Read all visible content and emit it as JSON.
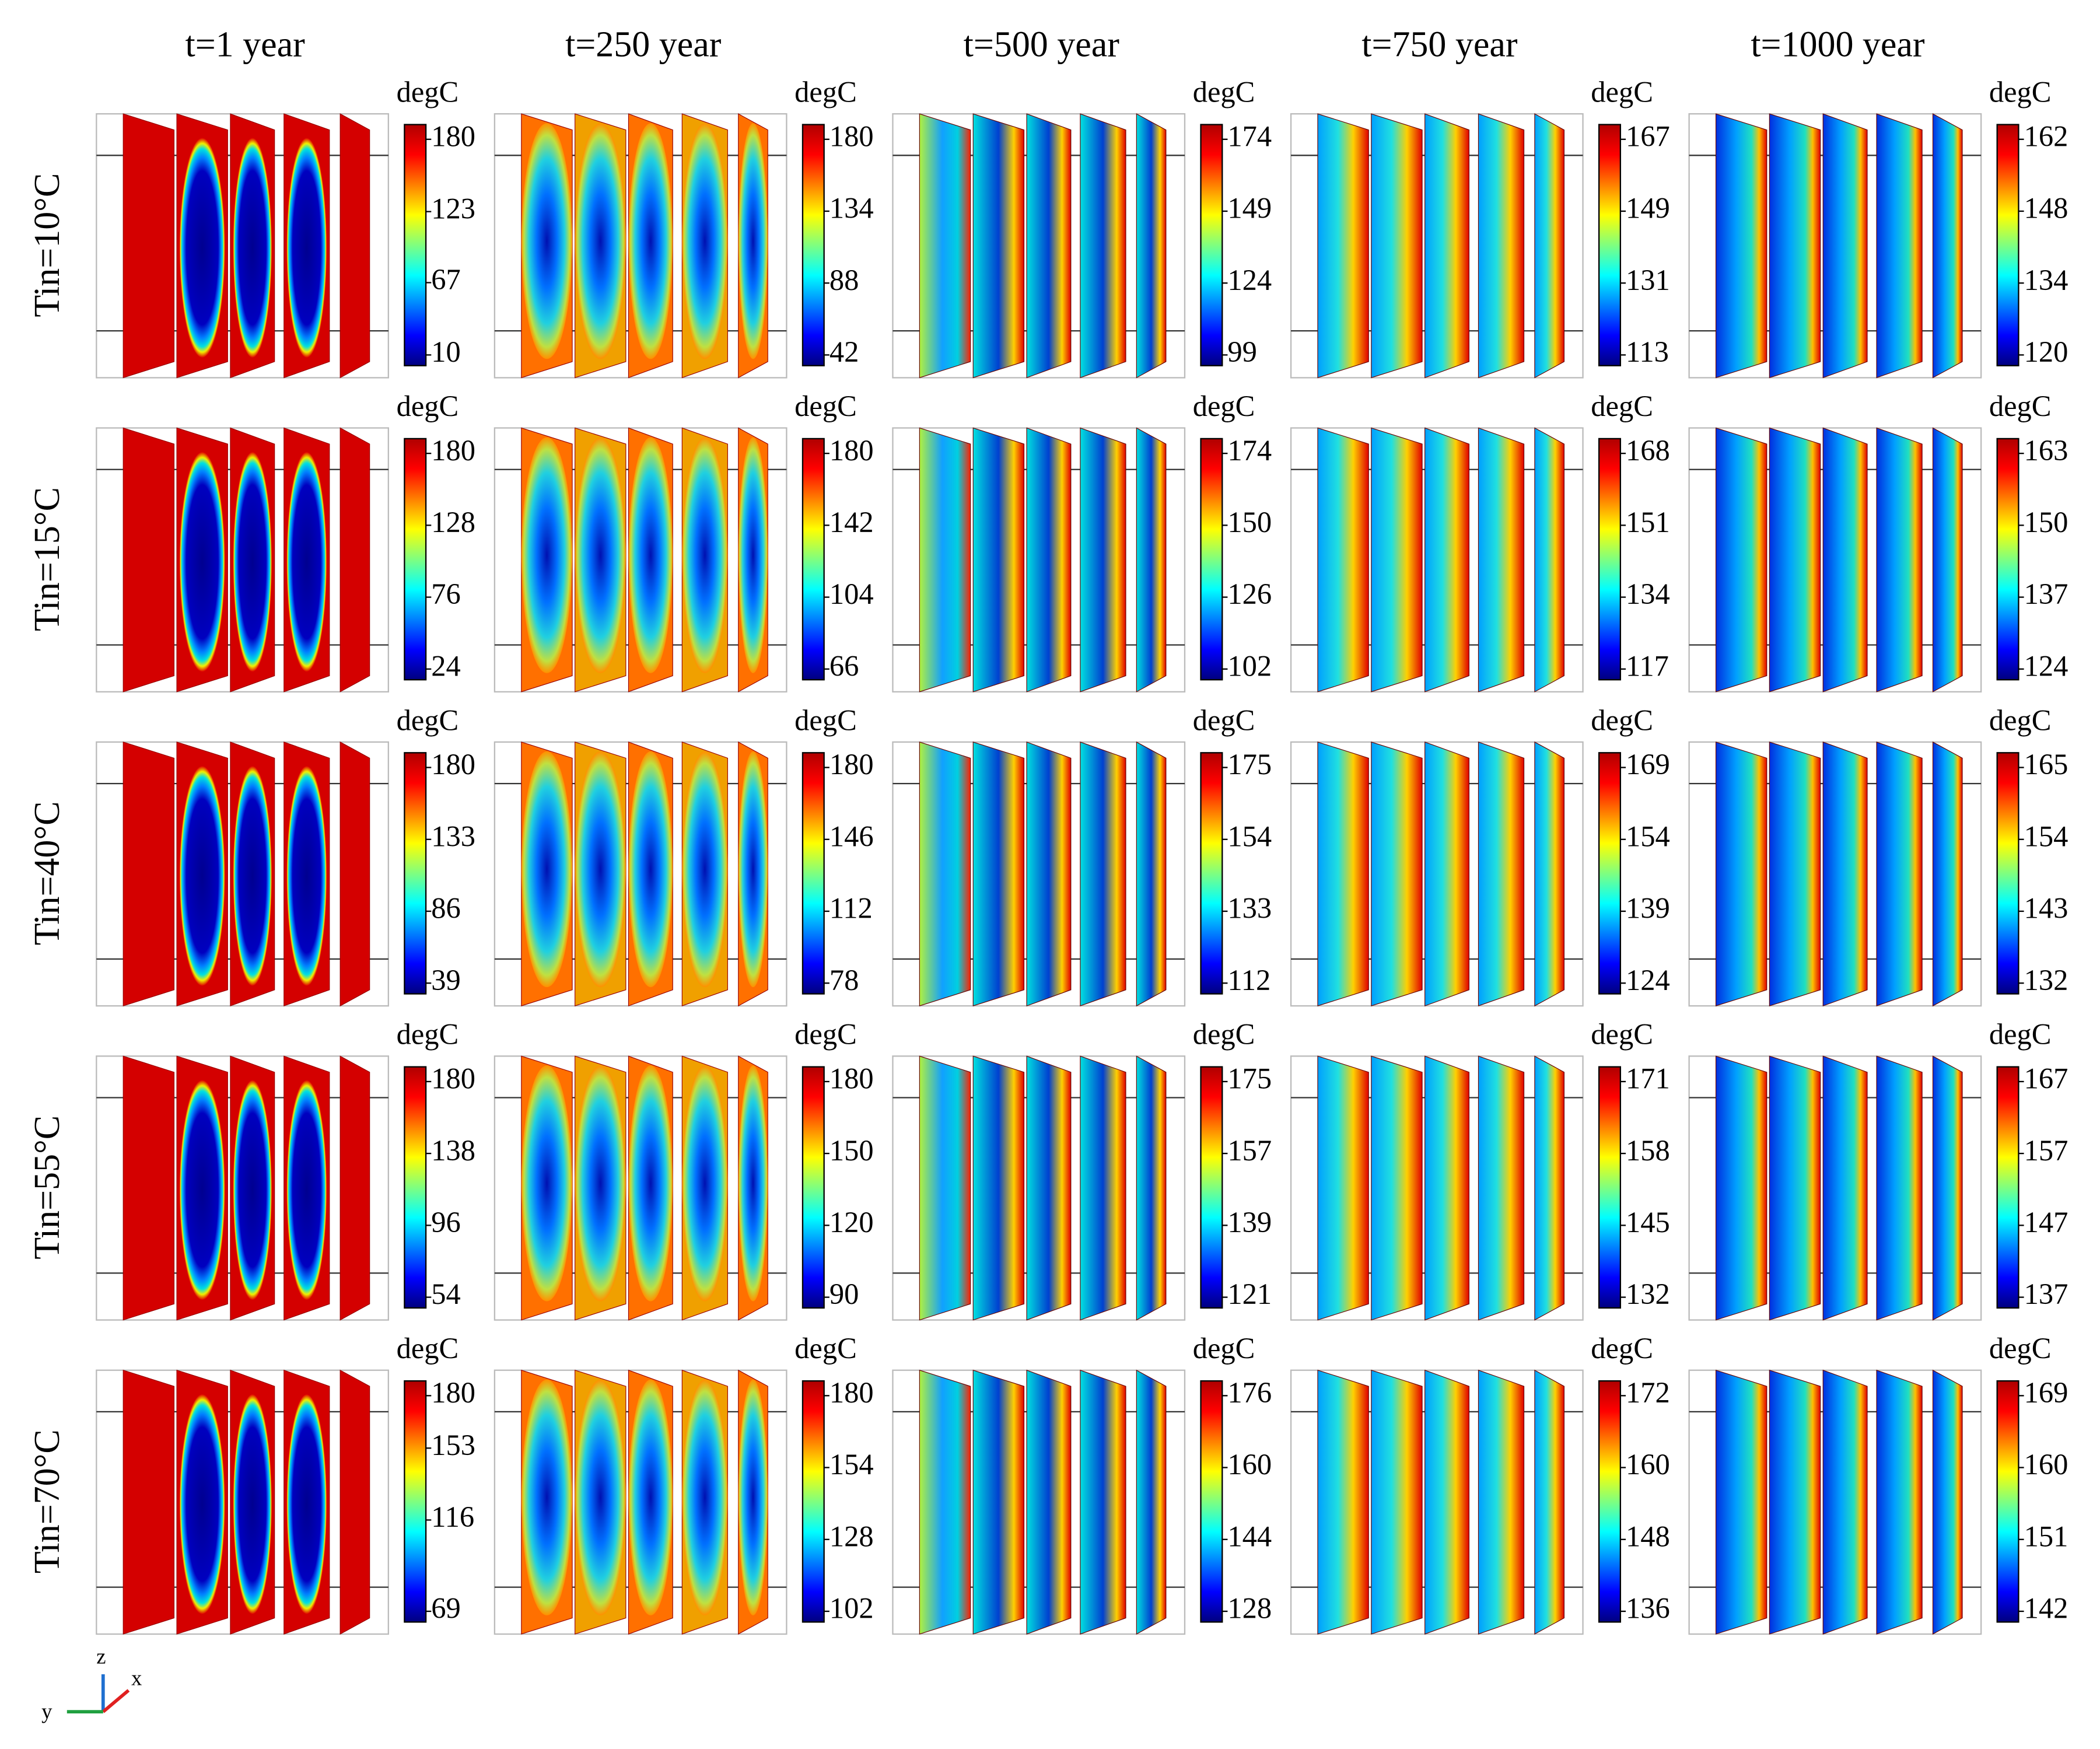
{
  "column_titles": [
    "t=1 year",
    "t=250 year",
    "t=500 year",
    "t=750 year",
    "t=1000 year"
  ],
  "row_labels": [
    "Tin=10°C",
    "Tin=15°C",
    "Tin=40°C",
    "Tin=55°C",
    "Tin=70°C"
  ],
  "colorbar_unit": "degC",
  "colorbar_ticks": [
    [
      [
        180,
        123,
        67,
        10
      ],
      [
        180,
        134,
        88,
        42
      ],
      [
        174,
        149,
        124,
        99
      ],
      [
        167,
        149,
        131,
        113
      ],
      [
        162,
        148,
        134,
        120
      ]
    ],
    [
      [
        180,
        128,
        76,
        24
      ],
      [
        180,
        142,
        104,
        66
      ],
      [
        174,
        150,
        126,
        102
      ],
      [
        168,
        151,
        134,
        117
      ],
      [
        163,
        150,
        137,
        124
      ]
    ],
    [
      [
        180,
        133,
        86,
        39
      ],
      [
        180,
        146,
        112,
        78
      ],
      [
        175,
        154,
        133,
        112
      ],
      [
        169,
        154,
        139,
        124
      ],
      [
        165,
        154,
        143,
        132
      ]
    ],
    [
      [
        180,
        138,
        96,
        54
      ],
      [
        180,
        150,
        120,
        90
      ],
      [
        175,
        157,
        139,
        121
      ],
      [
        171,
        158,
        145,
        132
      ],
      [
        167,
        157,
        147,
        137
      ]
    ],
    [
      [
        180,
        153,
        116,
        69
      ],
      [
        180,
        154,
        128,
        102
      ],
      [
        176,
        160,
        144,
        128
      ],
      [
        172,
        160,
        148,
        136
      ],
      [
        169,
        160,
        151,
        142
      ]
    ]
  ],
  "axis_triad": {
    "z": "z",
    "x": "x",
    "y": "y"
  }
}
